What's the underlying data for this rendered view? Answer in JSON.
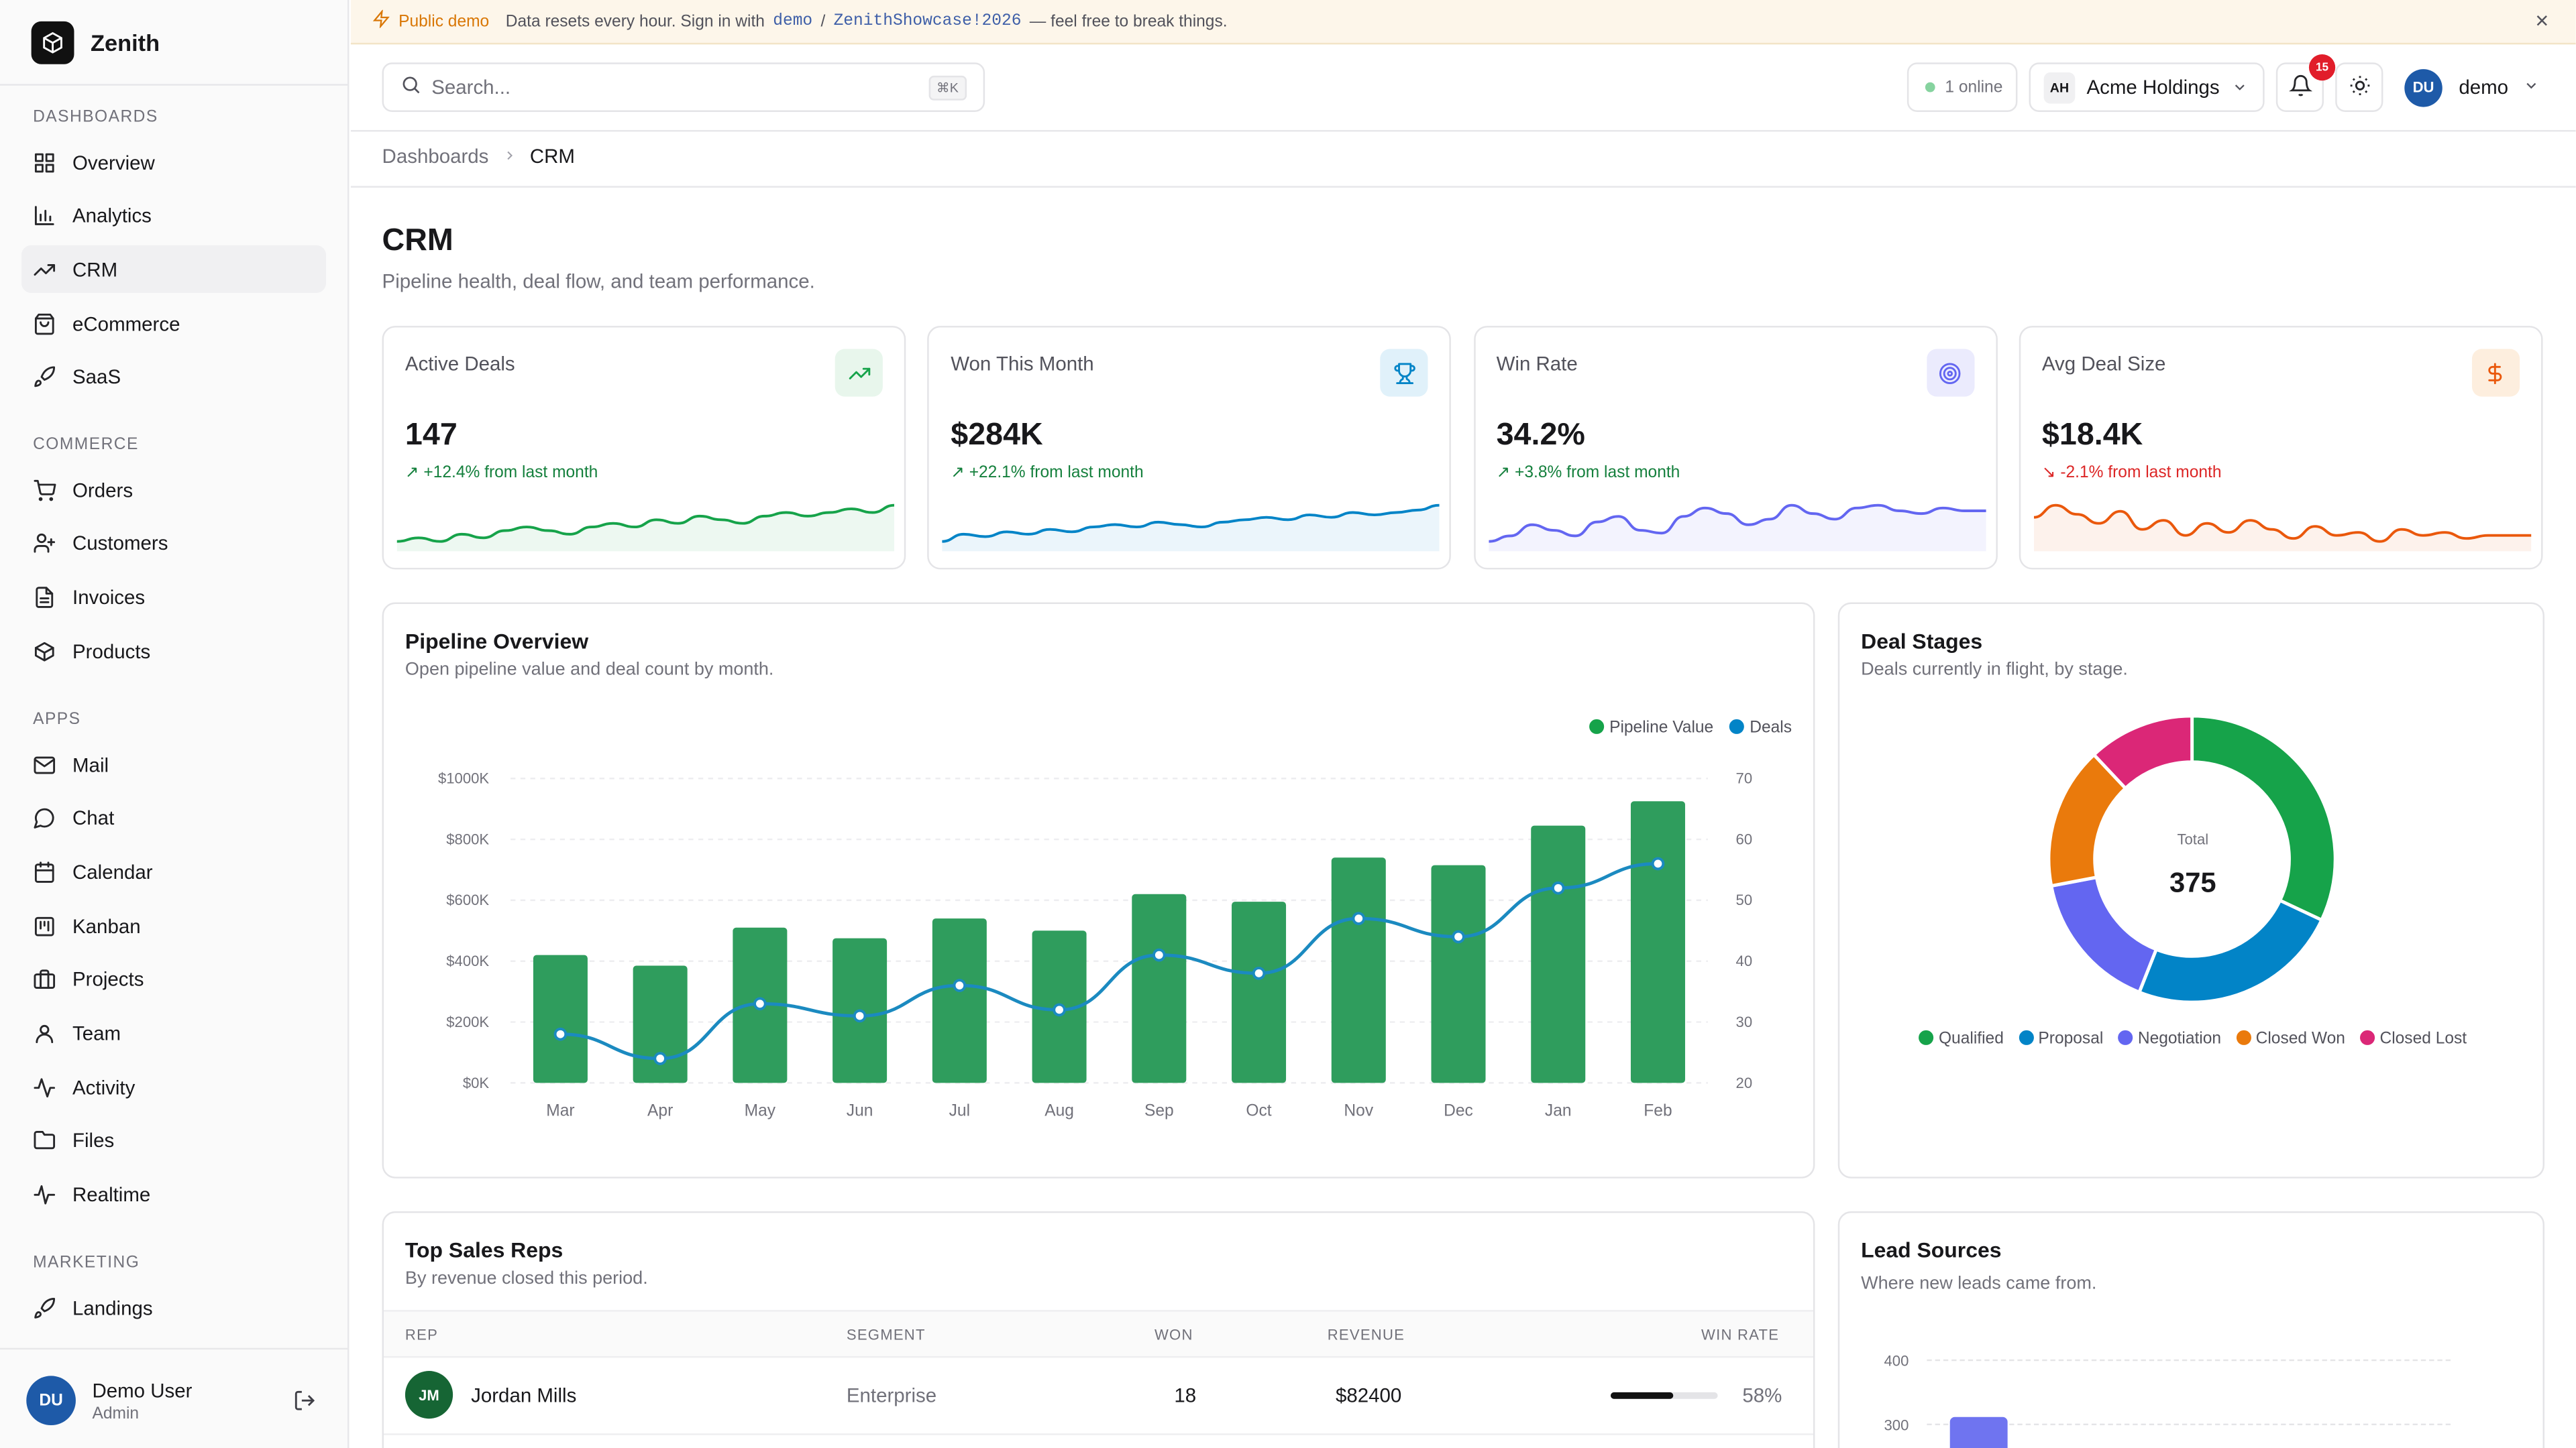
{
  "app": {
    "name": "Zenith"
  },
  "sidebar": {
    "sections": [
      {
        "title": "DASHBOARDS",
        "items": [
          {
            "label": "Overview",
            "icon": "layout-grid-icon"
          },
          {
            "label": "Analytics",
            "icon": "bar-chart-icon"
          },
          {
            "label": "CRM",
            "icon": "trending-up-icon",
            "active": true
          },
          {
            "label": "eCommerce",
            "icon": "shopping-bag-icon"
          },
          {
            "label": "SaaS",
            "icon": "rocket-icon"
          }
        ]
      },
      {
        "title": "COMMERCE",
        "items": [
          {
            "label": "Orders",
            "icon": "cart-icon"
          },
          {
            "label": "Customers",
            "icon": "user-plus-icon"
          },
          {
            "label": "Invoices",
            "icon": "file-text-icon"
          },
          {
            "label": "Products",
            "icon": "package-icon"
          }
        ]
      },
      {
        "title": "APPS",
        "items": [
          {
            "label": "Mail",
            "icon": "mail-icon"
          },
          {
            "label": "Chat",
            "icon": "message-circle-icon"
          },
          {
            "label": "Calendar",
            "icon": "calendar-icon"
          },
          {
            "label": "Kanban",
            "icon": "kanban-icon"
          },
          {
            "label": "Projects",
            "icon": "briefcase-icon"
          },
          {
            "label": "Team",
            "icon": "user-icon"
          },
          {
            "label": "Activity",
            "icon": "activity-icon"
          },
          {
            "label": "Files",
            "icon": "folder-icon"
          },
          {
            "label": "Realtime",
            "icon": "pulse-icon"
          }
        ]
      },
      {
        "title": "MARKETING",
        "items": [
          {
            "label": "Landings",
            "icon": "rocket-icon"
          }
        ]
      }
    ],
    "user": {
      "initials": "DU",
      "name": "Demo User",
      "role": "Admin"
    }
  },
  "banner": {
    "badge": "Public demo",
    "text1": "Data resets every hour. Sign in with",
    "username": "demo",
    "sep": "/",
    "password": "ZenithShowcase!2026",
    "text2": "— feel free to break things."
  },
  "topbar": {
    "search_placeholder": "Search...",
    "shortcut": "⌘K",
    "online": "1 online",
    "org_initials": "AH",
    "org_name": "Acme Holdings",
    "notif_count": "15",
    "user_initials": "DU",
    "user_name": "demo"
  },
  "breadcrumb": {
    "parent": "Dashboards",
    "current": "CRM"
  },
  "page": {
    "title": "CRM",
    "subtitle": "Pipeline health, deal flow, and team performance."
  },
  "kpis": [
    {
      "label": "Active Deals",
      "value": "147",
      "delta": "+12.4% from last month",
      "trend": "up",
      "color": "#16a34a",
      "icon": "trending-up-icon",
      "spark": [
        40,
        41,
        40,
        42,
        41,
        43,
        44,
        43,
        42,
        44,
        45,
        44,
        46,
        45,
        47,
        46,
        45,
        47,
        48,
        47,
        48,
        49,
        48,
        50
      ]
    },
    {
      "label": "Won This Month",
      "value": "$284K",
      "delta": "+22.1% from last month",
      "trend": "up",
      "color": "#0284c7",
      "icon": "trophy-icon",
      "spark": [
        30,
        33,
        32,
        34,
        33,
        35,
        34,
        36,
        37,
        36,
        38,
        37,
        36,
        38,
        39,
        40,
        39,
        41,
        40,
        42,
        41,
        42,
        43,
        45
      ]
    },
    {
      "label": "Win Rate",
      "value": "34.2%",
      "delta": "+3.8% from last month",
      "trend": "up",
      "color": "#6366f1",
      "icon": "target-icon",
      "spark": [
        34,
        36,
        40,
        38,
        36,
        41,
        43,
        38,
        37,
        43,
        46,
        44,
        40,
        42,
        47,
        44,
        42,
        46,
        47,
        45,
        44,
        46,
        45,
        45
      ]
    },
    {
      "label": "Avg Deal Size",
      "value": "$18.4K",
      "delta": "-2.1% from last month",
      "trend": "down",
      "color": "#ea580c",
      "icon": "dollar-icon",
      "spark": [
        44,
        48,
        45,
        42,
        46,
        40,
        43,
        38,
        42,
        39,
        43,
        40,
        37,
        41,
        38,
        39,
        36,
        40,
        38,
        39,
        37,
        38,
        38,
        38
      ]
    }
  ],
  "pipeline": {
    "title": "Pipeline Overview",
    "subtitle": "Open pipeline value and deal count by month.",
    "legend": [
      {
        "label": "Pipeline Value",
        "color": "#16a34a"
      },
      {
        "label": "Deals",
        "color": "#0284c7"
      }
    ],
    "y_left_ticks": [
      "$1000K",
      "$800K",
      "$600K",
      "$400K",
      "$200K",
      "$0K"
    ],
    "y_right_ticks": [
      "70",
      "60",
      "50",
      "40",
      "30",
      "20"
    ]
  },
  "chart_data": {
    "type": "bar",
    "categories": [
      "Mar",
      "Apr",
      "May",
      "Jun",
      "Jul",
      "Aug",
      "Sep",
      "Oct",
      "Nov",
      "Dec",
      "Jan",
      "Feb"
    ],
    "series": [
      {
        "name": "Pipeline Value",
        "type": "bar",
        "axis": "left",
        "unit": "$K",
        "values": [
          420,
          385,
          510,
          475,
          540,
          500,
          620,
          595,
          740,
          715,
          845,
          925
        ]
      },
      {
        "name": "Deals",
        "type": "line",
        "axis": "right",
        "values": [
          28,
          24,
          33,
          31,
          36,
          32,
          41,
          38,
          47,
          44,
          52,
          56
        ]
      }
    ],
    "ylim_left": [
      0,
      1000
    ],
    "ylim_right": [
      20,
      70
    ],
    "grid": true,
    "legend_position": "top-right"
  },
  "deal_stages": {
    "title": "Deal Stages",
    "subtitle": "Deals currently in flight, by stage.",
    "total_label": "Total",
    "total": "375",
    "slices": [
      {
        "label": "Qualified",
        "value": 120,
        "color": "#16a34a"
      },
      {
        "label": "Proposal",
        "value": 90,
        "color": "#0284c7"
      },
      {
        "label": "Negotiation",
        "value": 60,
        "color": "#6366f1"
      },
      {
        "label": "Closed Won",
        "value": 60,
        "color": "#ea7a0c"
      },
      {
        "label": "Closed Lost",
        "value": 45,
        "color": "#db2777"
      }
    ]
  },
  "reps": {
    "title": "Top Sales Reps",
    "subtitle": "By revenue closed this period.",
    "columns": [
      "REP",
      "SEGMENT",
      "WON",
      "REVENUE",
      "WIN RATE"
    ],
    "rows": [
      {
        "initials": "JM",
        "name": "Jordan Mills",
        "segment": "Enterprise",
        "won": "18",
        "revenue": "$82400",
        "win_rate": "58%",
        "win_fraction": 0.58
      }
    ]
  },
  "leads": {
    "title": "Lead Sources",
    "subtitle": "Where new leads came from.",
    "ticks": [
      "400",
      "300"
    ]
  }
}
